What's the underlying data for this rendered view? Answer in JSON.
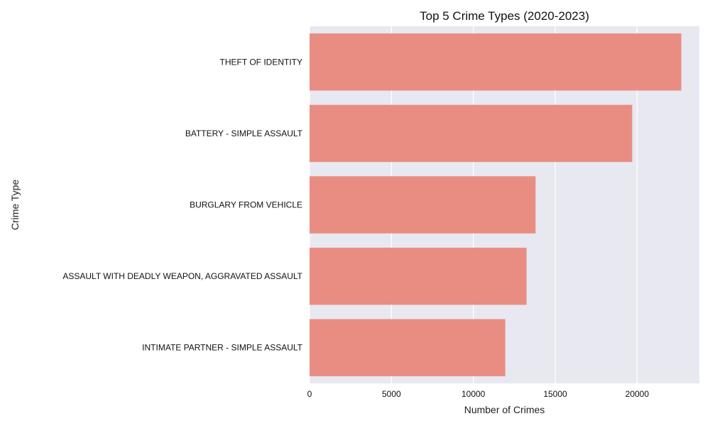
{
  "chart_data": {
    "type": "bar",
    "orientation": "horizontal",
    "title": "Top 5 Crime Types (2020-2023)",
    "xlabel": "Number of Crimes",
    "ylabel": "Crime Type",
    "categories": [
      "THEFT OF IDENTITY",
      "BATTERY - SIMPLE ASSAULT",
      "BURGLARY FROM VEHICLE",
      "ASSAULT WITH DEADLY WEAPON, AGGRAVATED ASSAULT",
      "INTIMATE PARTNER - SIMPLE ASSAULT"
    ],
    "values": [
      22700,
      19700,
      13800,
      13250,
      11950
    ],
    "xlim": [
      0,
      23800
    ],
    "xticks": [
      0,
      5000,
      10000,
      15000,
      20000
    ],
    "xtick_labels": [
      "0",
      "5000",
      "10000",
      "15000",
      "20000"
    ],
    "grid": true,
    "colors": {
      "bar": "#e98d82",
      "plot_background": "#e8e8f1",
      "grid": "#ffffff"
    }
  }
}
